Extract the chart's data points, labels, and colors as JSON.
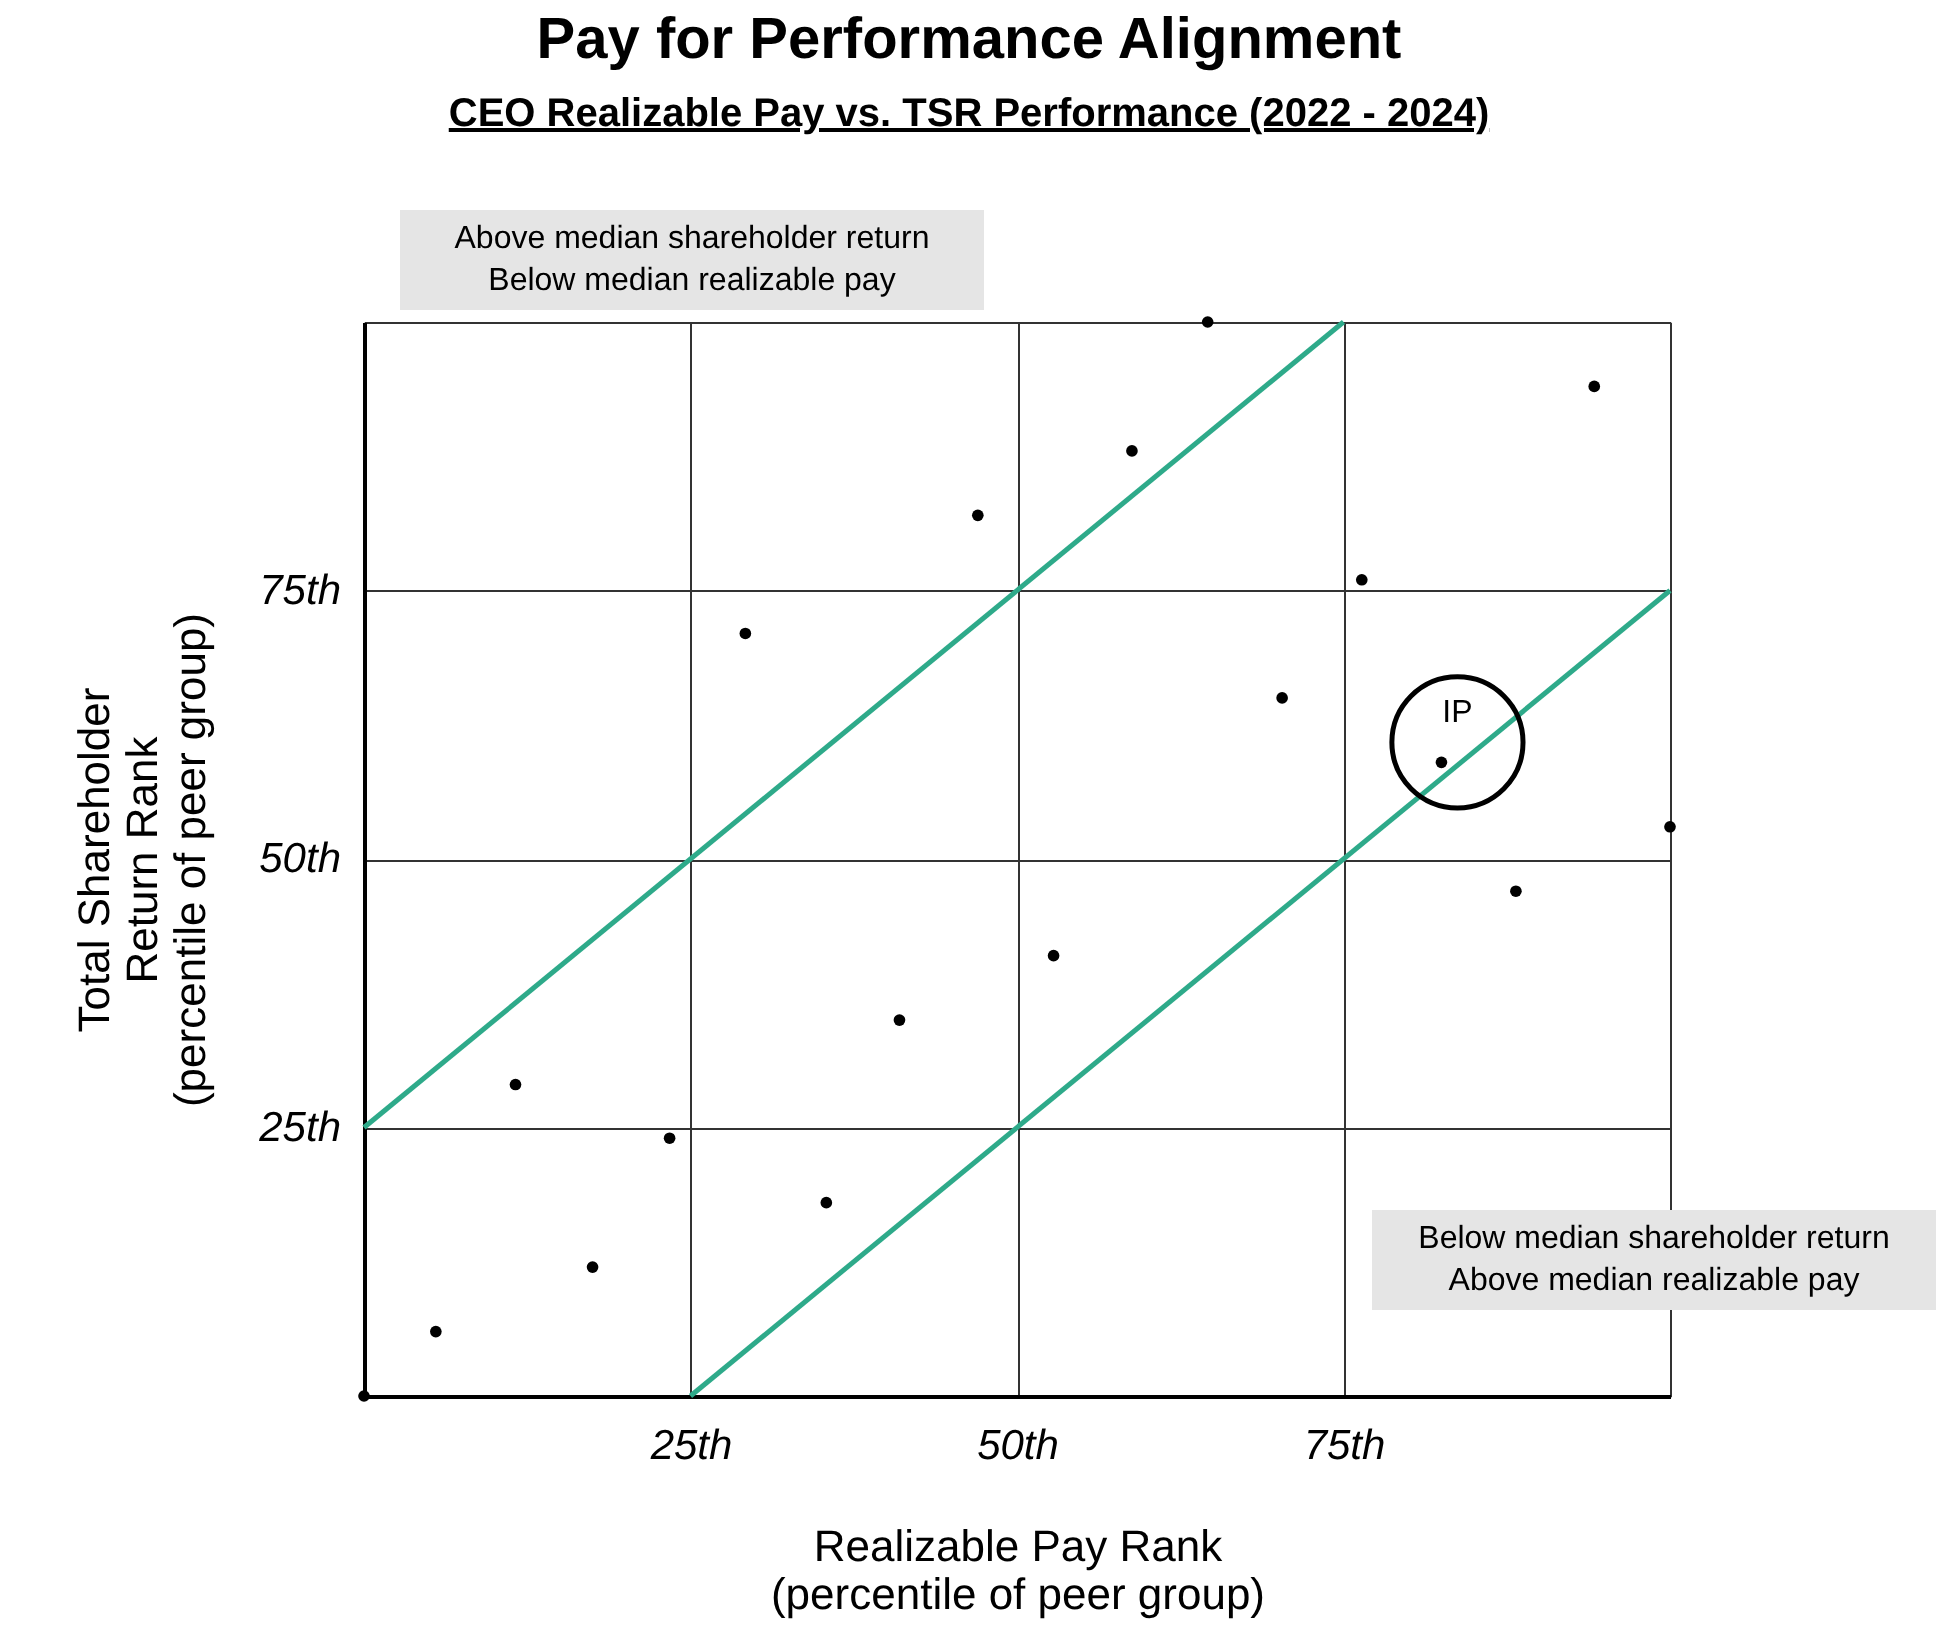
{
  "chart_data": {
    "type": "scatter",
    "title": "Pay for Performance Alignment",
    "subtitle": "CEO Realizable Pay vs. TSR Performance (2022 - 2024)",
    "xlabel": "Realizable Pay Rank\n(percentile of peer group)",
    "ylabel": "Total Shareholder\nReturn Rank\n(percentile of peer group)",
    "x": [
      0,
      5.5,
      11.6,
      17.5,
      23.4,
      29.2,
      35.4,
      41,
      47,
      52.8,
      58.8,
      64.6,
      70.3,
      76.4,
      82.5,
      88.2,
      94.2,
      100
    ],
    "series": [
      {
        "color": "#000000",
        "marker": "circle",
        "values": [
          0,
          6,
          29,
          12,
          24,
          71,
          18,
          35,
          82,
          41,
          88,
          100,
          65,
          76,
          59,
          47,
          94,
          53
        ]
      },
      {
        "type": "line",
        "color": "#2eaa8a",
        "x": [
          0,
          75
        ],
        "values": [
          25,
          100
        ]
      },
      {
        "type": "line",
        "color": "#2eaa8a",
        "x": [
          25,
          100
        ],
        "values": [
          0,
          75
        ]
      }
    ],
    "xlim": [
      0,
      100
    ],
    "ylim": [
      0,
      100
    ],
    "xticks": [
      {
        "value": 0,
        "label": null
      },
      {
        "value": 25,
        "label": "25th"
      },
      {
        "value": 50,
        "label": "50th"
      },
      {
        "value": 75,
        "label": "75th"
      },
      {
        "value": 100,
        "label": null
      }
    ],
    "yticks": [
      {
        "value": 0,
        "label": null
      },
      {
        "value": 25,
        "label": "25th"
      },
      {
        "value": 50,
        "label": "50th"
      },
      {
        "value": 75,
        "label": "75th"
      },
      {
        "value": 100,
        "label": null
      }
    ],
    "grid": true,
    "line_style": "solid",
    "annotations": [
      "Above median shareholder return\nBelow median realizable pay",
      "Below median shareholder return\nAbove median realizable pay",
      {
        "text": "IP",
        "x": 82.5,
        "y": 59
      }
    ]
  }
}
